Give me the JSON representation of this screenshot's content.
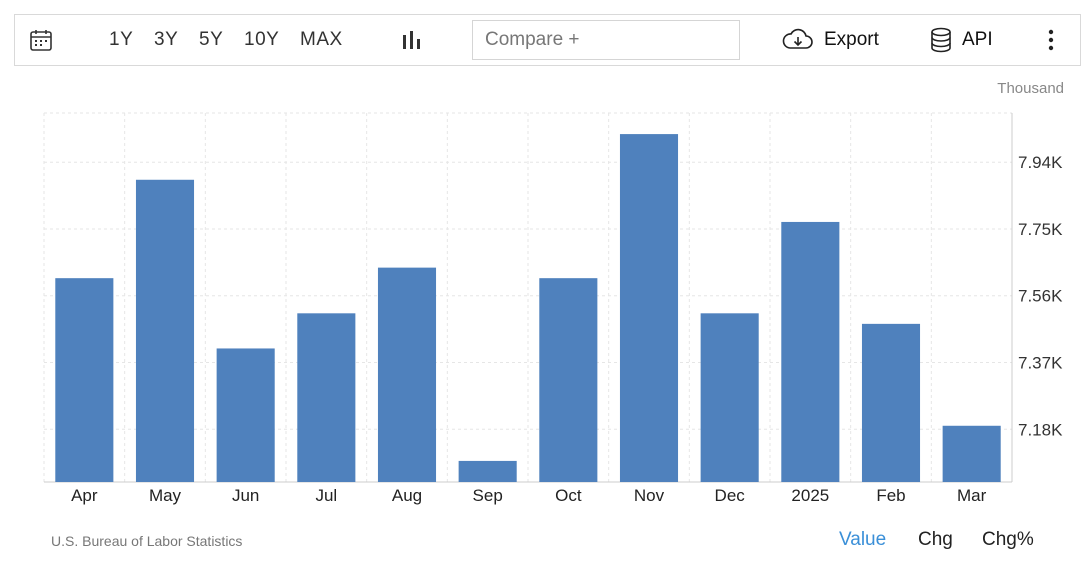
{
  "toolbar": {
    "ranges": [
      "1Y",
      "3Y",
      "5Y",
      "10Y",
      "MAX"
    ],
    "compare_placeholder": "Compare +",
    "export_label": "Export",
    "api_label": "API",
    "icons": [
      "calendar-icon",
      "bar-chart-icon",
      "cloud-download-icon",
      "database-icon",
      "more-vertical-icon"
    ]
  },
  "unit_label": "Thousand",
  "source": "U.S. Bureau of Labor Statistics",
  "view_tabs": [
    {
      "label": "Value",
      "active": true
    },
    {
      "label": "Chg",
      "active": false
    },
    {
      "label": "Chg%",
      "active": false
    }
  ],
  "chart_data": {
    "type": "bar",
    "categories": [
      "Apr",
      "May",
      "Jun",
      "Jul",
      "Aug",
      "Sep",
      "Oct",
      "Nov",
      "Dec",
      "2025",
      "Feb",
      "Mar"
    ],
    "values": [
      7.61,
      7.89,
      7.41,
      7.51,
      7.64,
      7.09,
      7.61,
      8.02,
      7.51,
      7.77,
      7.48,
      7.19
    ],
    "yticks": [
      7.18,
      7.37,
      7.56,
      7.75,
      7.94
    ],
    "ytick_labels": [
      "7.18K",
      "7.37K",
      "7.56K",
      "7.75K",
      "7.94K"
    ],
    "ylim": [
      7.03,
      8.08
    ],
    "bar_color": "#4f81bd",
    "grid": true,
    "axis_position": "right"
  }
}
